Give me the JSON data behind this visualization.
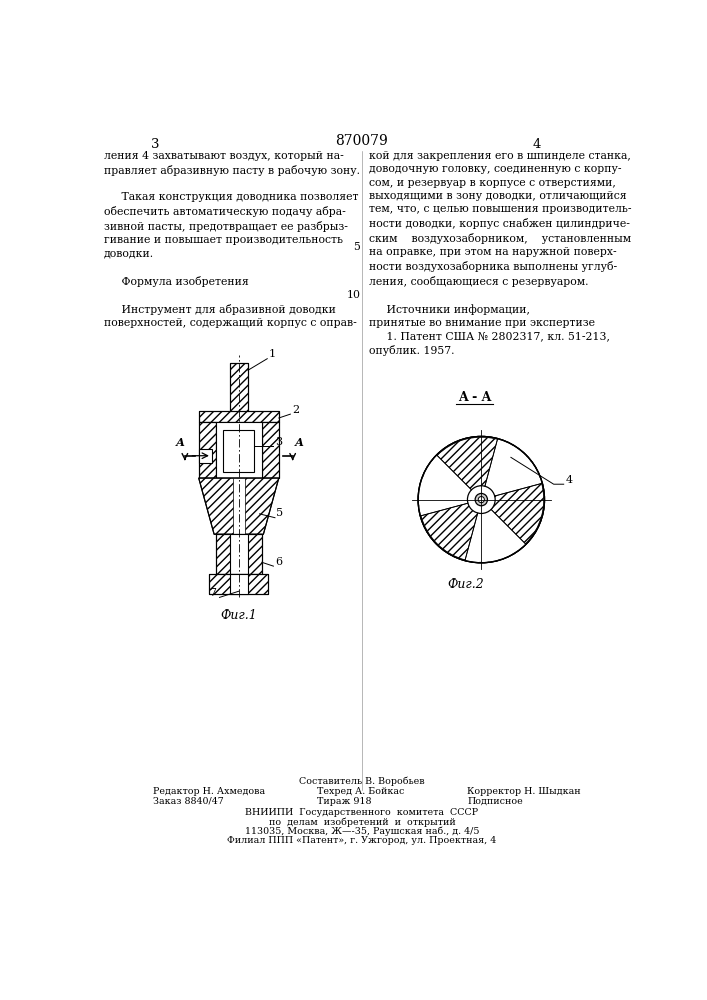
{
  "page_number_left": "3",
  "page_number_right": "4",
  "patent_number": "870079",
  "fig1_label": "Фиг.1",
  "fig2_label": "Фиг.2",
  "aa_label": "A - A",
  "bottom_text_line1": "Составитель В. Воробьев",
  "bottom_text_line2_left": "Редактор Н. Ахмедова",
  "bottom_text_line2_mid": "Техред А. Бойкас",
  "bottom_text_line2_right": "Корректор Н. Шыдкан",
  "bottom_text_line3_left": "Заказ 8840/47",
  "bottom_text_line3_mid": "Тираж 918",
  "bottom_text_line3_right": "Подписное",
  "bottom_text_vniip1": "ВНИИПИ  Государственного  комитета  СССР",
  "bottom_text_vniip2": "по  делам  изобретений  и  открытий",
  "bottom_text_vniip3": "113035, Москва, Ж—-35, Раушская наб., д. 4/5",
  "bottom_text_vniip4": "Филиал ППП «Патент», г. Ужгород, ул. Проектная, 4",
  "bg_color": "#ffffff",
  "line_color": "#000000",
  "text_color": "#000000"
}
